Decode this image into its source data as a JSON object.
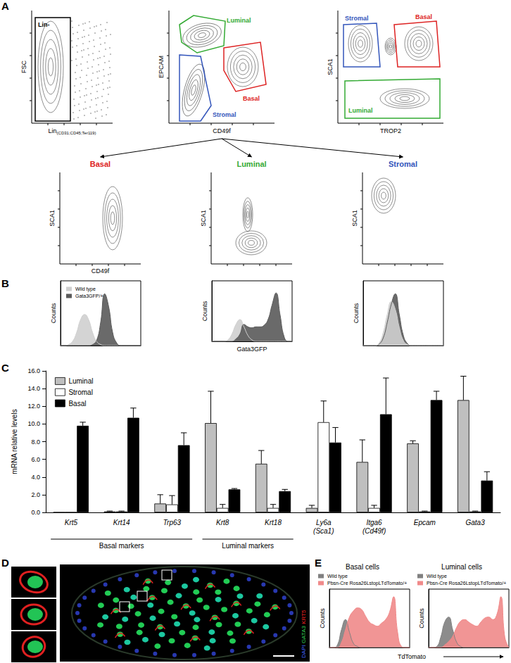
{
  "panel_labels": [
    "A",
    "B",
    "C",
    "D",
    "E"
  ],
  "panel_A": {
    "gating_plots": [
      {
        "ylabel": "FSC",
        "xlabel": "Lin",
        "xlabel_sub": "(CD31;CD45;Ter119)",
        "gates": [
          {
            "label": "Lin-",
            "color": "#000000"
          }
        ]
      },
      {
        "ylabel": "EPCAM",
        "xlabel": "CD49f",
        "gates": [
          {
            "label": "Luminal",
            "color": "#33aa33"
          },
          {
            "label": "Basal",
            "color": "#dd2222"
          },
          {
            "label": "Stromal",
            "color": "#3355bb"
          }
        ]
      },
      {
        "ylabel": "SCA1",
        "xlabel": "TROP2",
        "gates": [
          {
            "label": "Stromal",
            "color": "#3355bb"
          },
          {
            "label": "Basal",
            "color": "#dd2222"
          },
          {
            "label": "Luminal",
            "color": "#33aa33"
          }
        ]
      }
    ],
    "population_plots": [
      {
        "title": "Basal",
        "color": "#dd2222",
        "ylabel": "SCA1",
        "xlabel": "CD49f"
      },
      {
        "title": "Luminal",
        "color": "#33aa33",
        "ylabel": "SCA1"
      },
      {
        "title": "Stromal",
        "color": "#3355bb",
        "ylabel": "SCA1"
      }
    ]
  },
  "panel_D": {
    "stains": [
      {
        "label": "DAPI",
        "color": "#4466ff"
      },
      {
        "label": "GATA3",
        "color": "#33cc55"
      },
      {
        "label": "KRT5",
        "color": "#ee2222"
      }
    ]
  },
  "panel_E": {
    "xlabel": "TdTomato"
  },
  "chart_data": [
    {
      "type": "line",
      "ylabel": "Counts",
      "xlim": [
        0,
        1
      ],
      "ylim": [
        0,
        1.25
      ],
      "tick_labels": false,
      "legend": "upper left",
      "x": [
        0,
        0.05,
        0.1,
        0.15,
        0.2,
        0.25,
        0.3,
        0.35,
        0.4,
        0.45,
        0.5,
        0.55,
        0.6,
        0.65,
        0.7,
        0.75,
        0.8,
        0.85,
        0.9,
        0.95,
        1
      ],
      "series": [
        {
          "name": "Wild type",
          "color": "#cfcfcf",
          "values": [
            0,
            0,
            0.02,
            0.08,
            0.25,
            0.5,
            0.6,
            0.5,
            0.25,
            0.08,
            0.02,
            0,
            0,
            0,
            0,
            0,
            0,
            0,
            0,
            0,
            0
          ]
        },
        {
          "name": "Gata3GFP/+",
          "color": "#5a5a5a",
          "values": [
            0,
            0,
            0,
            0,
            0,
            0,
            0,
            0,
            0.02,
            0.1,
            0.45,
            1.0,
            0.75,
            0.25,
            0.05,
            0,
            0,
            0,
            0,
            0,
            0
          ]
        }
      ]
    },
    {
      "type": "line",
      "ylabel": "Counts",
      "xlabel": "Gata3GFP",
      "xlim": [
        0,
        1
      ],
      "ylim": [
        0,
        1.25
      ],
      "tick_labels": false,
      "x": [
        0,
        0.05,
        0.1,
        0.15,
        0.2,
        0.25,
        0.3,
        0.35,
        0.4,
        0.45,
        0.5,
        0.55,
        0.6,
        0.65,
        0.7,
        0.75,
        0.8,
        0.85,
        0.9,
        0.95,
        1
      ],
      "series": [
        {
          "name": "Wild type",
          "color": "#cfcfcf",
          "values": [
            0,
            0,
            0,
            0,
            0.03,
            0.15,
            0.35,
            0.45,
            0.3,
            0.12,
            0.03,
            0,
            0,
            0,
            0,
            0,
            0,
            0,
            0,
            0,
            0
          ]
        },
        {
          "name": "Gata3GFP/+",
          "color": "#5a5a5a",
          "values": [
            0,
            0,
            0,
            0,
            0,
            0,
            0.05,
            0.15,
            0.35,
            0.3,
            0.28,
            0.3,
            0.3,
            0.33,
            0.45,
            0.75,
            1.0,
            0.55,
            0.1,
            0,
            0
          ]
        }
      ]
    },
    {
      "type": "line",
      "ylabel": "Counts",
      "xlim": [
        0,
        1
      ],
      "ylim": [
        0,
        1.25
      ],
      "tick_labels": false,
      "x": [
        0,
        0.05,
        0.1,
        0.15,
        0.2,
        0.25,
        0.3,
        0.35,
        0.4,
        0.45,
        0.5,
        0.55,
        0.6,
        0.65,
        0.7,
        0.75,
        0.8,
        0.85,
        0.9,
        0.95,
        1
      ],
      "series": [
        {
          "name": "Gata3GFP/+",
          "color": "#5a5a5a",
          "values": [
            0,
            0,
            0,
            0,
            0.03,
            0.15,
            0.45,
            0.8,
            1.0,
            0.6,
            0.2,
            0.04,
            0,
            0,
            0,
            0,
            0,
            0,
            0,
            0,
            0
          ]
        },
        {
          "name": "Wild type",
          "color": "#cfcfcf",
          "values": [
            0,
            0,
            0,
            0,
            0.05,
            0.25,
            0.6,
            0.85,
            0.7,
            0.35,
            0.1,
            0.02,
            0,
            0,
            0,
            0,
            0,
            0,
            0,
            0,
            0
          ]
        }
      ]
    },
    {
      "type": "bar",
      "ylabel": "mRNA relative levels",
      "categories": [
        "Krt5",
        "Krt14",
        "Trp63",
        "Krt8",
        "Krt18",
        "Ly6a\n(Sca1)",
        "Itga6\n(Cd49f)",
        "Epcam",
        "Gata3"
      ],
      "series": [
        {
          "name": "Luminal",
          "color": "#bfbfbf",
          "values": [
            0,
            0.1,
            1.0,
            10.1,
            5.5,
            0.5,
            5.7,
            7.8,
            12.7
          ],
          "errors": [
            0,
            0.05,
            1.0,
            3.6,
            1.5,
            0.3,
            2.5,
            0.3,
            2.7
          ]
        },
        {
          "name": "Stromal",
          "color": "#ffffff",
          "values": [
            0,
            0.1,
            0.9,
            0.5,
            0.5,
            10.2,
            0.5,
            0.1,
            0.1
          ],
          "errors": [
            0,
            0.05,
            1.0,
            0.4,
            0.4,
            2.4,
            0.3,
            0.05,
            0.05
          ]
        },
        {
          "name": "Basal",
          "color": "#000000",
          "values": [
            9.8,
            10.7,
            7.6,
            2.6,
            2.4,
            7.9,
            11.1,
            12.7,
            3.6
          ],
          "errors": [
            0.4,
            1.1,
            1.4,
            0.1,
            0.2,
            1.7,
            4.1,
            1.0,
            1.0
          ]
        }
      ],
      "ylim": [
        0,
        16
      ],
      "yticks": [
        {
          "value": 0,
          "label": "0.0"
        },
        {
          "value": 2,
          "label": "2.0"
        },
        {
          "value": 4,
          "label": "4.0"
        },
        {
          "value": 6,
          "label": "6.0"
        },
        {
          "value": 8,
          "label": "8.0"
        },
        {
          "value": 10,
          "label": "10.0"
        },
        {
          "value": 12,
          "label": "12.0"
        },
        {
          "value": 14,
          "label": "14.0"
        },
        {
          "value": 16,
          "label": "16.0"
        }
      ],
      "legend": "upper left",
      "grid": false,
      "groups": [
        {
          "label": "Basal markers",
          "categories": [
            "Krt5",
            "Krt14",
            "Trp63"
          ]
        },
        {
          "label": "Luminal markers",
          "categories": [
            "Krt8",
            "Krt18"
          ]
        }
      ]
    },
    {
      "type": "line",
      "title": "Basal cells",
      "ylabel": "Counts",
      "xlim": [
        0,
        1
      ],
      "ylim": [
        0,
        1.15
      ],
      "tick_labels": false,
      "legend": "top",
      "x": [
        0,
        0.05,
        0.1,
        0.15,
        0.2,
        0.25,
        0.3,
        0.35,
        0.4,
        0.45,
        0.5,
        0.55,
        0.6,
        0.65,
        0.7,
        0.75,
        0.8,
        0.85,
        0.9,
        0.95,
        1
      ],
      "series": [
        {
          "name": "Wild type",
          "color": "#808080",
          "values": [
            0,
            0,
            0.05,
            0.35,
            0.55,
            0.3,
            0.08,
            0.02,
            0,
            0,
            0,
            0,
            0,
            0,
            0,
            0,
            0,
            0,
            0,
            0,
            0
          ]
        },
        {
          "name": "Pbsn-Cre Rosa26LstopLTdTomato/+",
          "color": "#f08a8a",
          "values": [
            0,
            0,
            0,
            0.1,
            0.35,
            0.6,
            0.72,
            0.78,
            0.75,
            0.62,
            0.5,
            0.45,
            0.42,
            0.48,
            0.55,
            0.7,
            1.0,
            0.3,
            0.02,
            0,
            0
          ]
        }
      ]
    },
    {
      "type": "line",
      "title": "Luminal cells",
      "ylabel": "Counts",
      "xlim": [
        0,
        1
      ],
      "ylim": [
        0,
        1.15
      ],
      "tick_labels": false,
      "legend": "top",
      "x": [
        0,
        0.05,
        0.1,
        0.15,
        0.2,
        0.25,
        0.3,
        0.35,
        0.4,
        0.45,
        0.5,
        0.55,
        0.6,
        0.65,
        0.7,
        0.75,
        0.8,
        0.85,
        0.9,
        0.95,
        1
      ],
      "series": [
        {
          "name": "Wild type",
          "color": "#808080",
          "values": [
            0,
            0,
            0.02,
            0.2,
            0.5,
            0.6,
            0.35,
            0.1,
            0.02,
            0,
            0,
            0,
            0,
            0,
            0,
            0,
            0,
            0,
            0,
            0,
            0
          ]
        },
        {
          "name": "Pbsn-Cre Rosa26LstopLTdTomato/+",
          "color": "#f08a8a",
          "values": [
            0,
            0,
            0,
            0,
            0.05,
            0.12,
            0.22,
            0.4,
            0.52,
            0.55,
            0.5,
            0.45,
            0.42,
            0.5,
            0.58,
            0.6,
            0.55,
            0.65,
            1.0,
            0.2,
            0
          ]
        }
      ]
    }
  ]
}
